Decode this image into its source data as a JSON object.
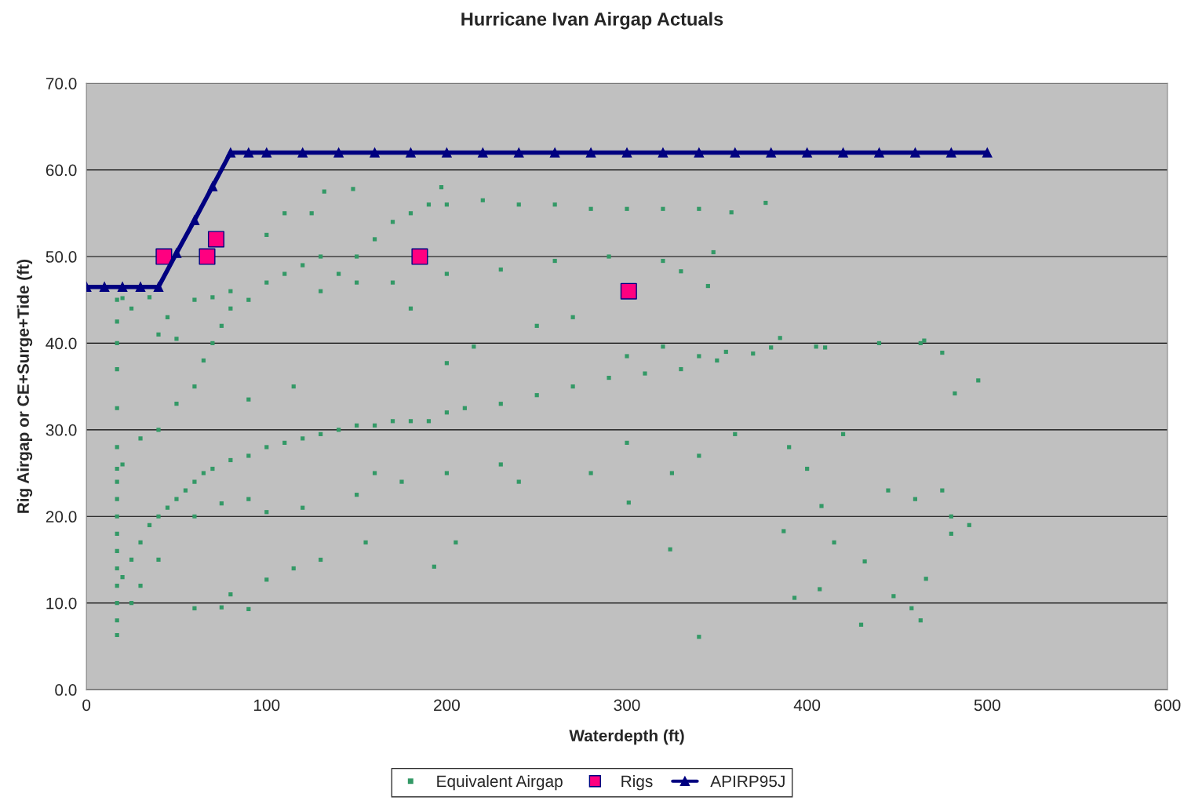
{
  "chart_data": {
    "type": "scatter",
    "title": "Hurricane Ivan Airgap Actuals",
    "xlabel": "Waterdepth (ft)",
    "ylabel": "Rig Airgap or CE+Surge+Tide (ft)",
    "xlim": [
      0,
      600
    ],
    "xticks": [
      0,
      100,
      200,
      300,
      400,
      500,
      600
    ],
    "ylim": [
      0,
      70
    ],
    "yticks": [
      {
        "value": 0,
        "label": "0.0"
      },
      {
        "value": 10,
        "label": "10.0"
      },
      {
        "value": 20,
        "label": "20.0"
      },
      {
        "value": 30,
        "label": "30.0"
      },
      {
        "value": 40,
        "label": "40.0"
      },
      {
        "value": 50,
        "label": "50.0"
      },
      {
        "value": 60,
        "label": "60.0"
      },
      {
        "value": 70,
        "label": "70.0"
      }
    ],
    "grid": "y",
    "legend": "bottom",
    "series": [
      {
        "name": "Equivalent Airgap",
        "marker": "square",
        "color": "#339966",
        "x": [
          17,
          17,
          17,
          17,
          17,
          17,
          17,
          17,
          17,
          17,
          17,
          17,
          17,
          17,
          17,
          17,
          17,
          20,
          25,
          30,
          35,
          40,
          45,
          50,
          55,
          60,
          65,
          70,
          80,
          90,
          100,
          110,
          120,
          130,
          140,
          150,
          160,
          170,
          180,
          190,
          200,
          210,
          230,
          250,
          270,
          290,
          310,
          330,
          350,
          380,
          410,
          440,
          465,
          30,
          40,
          60,
          75,
          90,
          100,
          120,
          150,
          160,
          175,
          200,
          230,
          240,
          280,
          300,
          325,
          340,
          360,
          390,
          400,
          420,
          445,
          460,
          475,
          480,
          480,
          490,
          495,
          482,
          408,
          387,
          393,
          407,
          415,
          430,
          432,
          448,
          458,
          463,
          466,
          340,
          324,
          301,
          193,
          205,
          155,
          130,
          115,
          100,
          90,
          75,
          60,
          80,
          25,
          20,
          30,
          40,
          50,
          60,
          65,
          70,
          75,
          80,
          90,
          100,
          110,
          120,
          130,
          130,
          140,
          150,
          160,
          170,
          180,
          190,
          200,
          220,
          240,
          260,
          280,
          300,
          320,
          340,
          358,
          377,
          132,
          148,
          197,
          100,
          110,
          125,
          150,
          170,
          200,
          230,
          260,
          290,
          320,
          348,
          345,
          330,
          250,
          270,
          180,
          60,
          70,
          80,
          50,
          45,
          40,
          35,
          25,
          20,
          90,
          115,
          200,
          215,
          300,
          320,
          340,
          355,
          370,
          385,
          405,
          463,
          475
        ],
        "values": [
          6.3,
          8,
          10,
          12,
          14,
          16,
          18,
          20,
          22,
          24,
          25.5,
          28,
          32.5,
          37,
          40,
          42.5,
          45,
          13,
          15,
          17,
          19,
          20,
          21,
          22,
          23,
          24,
          25,
          25.5,
          26.5,
          27,
          28,
          28.5,
          29,
          29.5,
          30,
          30.5,
          30.5,
          31,
          31,
          31,
          32,
          32.5,
          33,
          34,
          35,
          36,
          36.5,
          37,
          38,
          39.5,
          39.5,
          40,
          40.3,
          12,
          15,
          20,
          21.5,
          22,
          20.5,
          21,
          22.5,
          25,
          24,
          25,
          26,
          24,
          25,
          28.5,
          25,
          27,
          29.5,
          28,
          25.5,
          29.5,
          23,
          22,
          23,
          20,
          18,
          19,
          35.7,
          34.2,
          21.2,
          18.3,
          10.6,
          11.6,
          17,
          7.5,
          14.8,
          10.8,
          9.4,
          8,
          12.8,
          6.1,
          16.2,
          21.6,
          14.2,
          17,
          17,
          15,
          14,
          12.7,
          9.3,
          9.5,
          9.4,
          11,
          10,
          26,
          29,
          30,
          33,
          35,
          38,
          40,
          42,
          44,
          45,
          47,
          48,
          49,
          50,
          46,
          48,
          50,
          52,
          54,
          55,
          56,
          56,
          56.5,
          56,
          56,
          55.5,
          55.5,
          55.5,
          55.5,
          55.1,
          56.2,
          57.5,
          57.8,
          58,
          52.5,
          55,
          55,
          47,
          47,
          48,
          48.5,
          49.5,
          50,
          49.5,
          50.5,
          46.6,
          48.3,
          42,
          43,
          44,
          45,
          45.3,
          46,
          40.5,
          43,
          41,
          45.3,
          44,
          45.2,
          33.5,
          35,
          37.7,
          39.6,
          38.5,
          39.6,
          38.5,
          39,
          38.8,
          40.6,
          39.6,
          40,
          38.9
        ]
      },
      {
        "name": "Rigs",
        "marker": "square",
        "color": "#ff0080",
        "x": [
          43,
          67,
          72,
          185,
          301
        ],
        "values": [
          50,
          50,
          52,
          50,
          46
        ]
      },
      {
        "name": "APIRP95J",
        "type": "line",
        "marker": "triangle",
        "color": "#000080",
        "x": [
          0,
          10,
          20,
          30,
          40,
          50,
          60,
          70,
          80,
          90,
          100,
          120,
          140,
          160,
          180,
          200,
          220,
          240,
          260,
          280,
          300,
          320,
          340,
          360,
          380,
          400,
          420,
          440,
          460,
          480,
          500
        ],
        "values": [
          46.5,
          46.5,
          46.5,
          46.5,
          46.5,
          50.4,
          54.2,
          58.1,
          62,
          62,
          62,
          62,
          62,
          62,
          62,
          62,
          62,
          62,
          62,
          62,
          62,
          62,
          62,
          62,
          62,
          62,
          62,
          62,
          62,
          62,
          62
        ]
      }
    ]
  }
}
